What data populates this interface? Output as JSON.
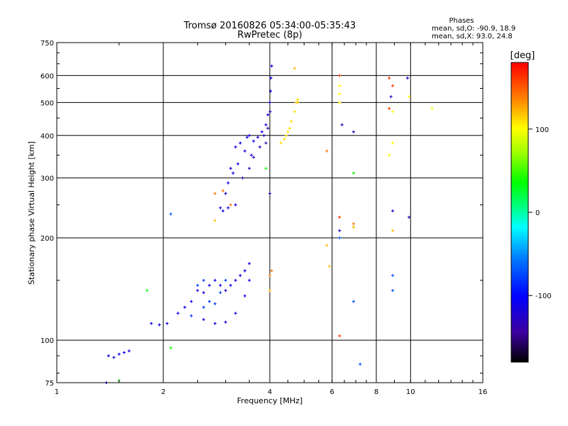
{
  "chart_data": {
    "type": "scatter",
    "title": "Tromsø 20160826 05:34:00-05:35:43",
    "subtitle": "RwPretec (8p)",
    "xlabel": "Frequency [MHz]",
    "ylabel": "Stationary phase Virtual Height [km]",
    "x_scale": "log2",
    "y_scale": "log",
    "xlim": [
      1,
      16
    ],
    "ylim": [
      75,
      750
    ],
    "x_ticks": [
      1,
      2,
      4,
      6,
      8,
      10,
      16
    ],
    "y_ticks": [
      75,
      100,
      200,
      300,
      400,
      500,
      600,
      750
    ],
    "x_gridlines": [
      2,
      4,
      6,
      8,
      10
    ],
    "y_gridlines": [
      100,
      200,
      300,
      400,
      500,
      600
    ],
    "grid": true,
    "phase_info": {
      "title": "Phases",
      "line1": "mean, sd,O: -90.9, 18.9",
      "line2": "mean, sd,X:  93.0, 24.8"
    },
    "colorbar": {
      "label": "[deg]",
      "range": [
        -180,
        180
      ],
      "ticks": [
        100,
        0,
        -100
      ]
    },
    "series": [
      {
        "color_value": -110,
        "points": [
          [
            3.8,
            410
          ],
          [
            3.9,
            430
          ],
          [
            3.95,
            460
          ],
          [
            4.0,
            500
          ],
          [
            4.02,
            540
          ],
          [
            4.03,
            590
          ],
          [
            4.05,
            640
          ],
          [
            3.7,
            395
          ],
          [
            3.6,
            385
          ],
          [
            3.5,
            400
          ],
          [
            3.45,
            395
          ],
          [
            3.3,
            380
          ],
          [
            3.2,
            370
          ],
          [
            3.25,
            330
          ],
          [
            3.4,
            360
          ],
          [
            3.55,
            350
          ],
          [
            3.1,
            320
          ],
          [
            3.15,
            310
          ],
          [
            3.0,
            270
          ],
          [
            3.05,
            290
          ],
          [
            2.9,
            245
          ],
          [
            2.95,
            240
          ],
          [
            3.05,
            245
          ],
          [
            3.2,
            250
          ]
        ]
      },
      {
        "color_value": -135,
        "points": [
          [
            3.35,
            300
          ],
          [
            3.5,
            320
          ],
          [
            3.6,
            345
          ],
          [
            3.75,
            370
          ],
          [
            3.85,
            400
          ],
          [
            3.95,
            420
          ],
          [
            4.01,
            470
          ],
          [
            3.9,
            380
          ]
        ]
      },
      {
        "color_value": 110,
        "points": [
          [
            4.3,
            380
          ],
          [
            4.4,
            390
          ],
          [
            4.5,
            410
          ],
          [
            4.6,
            440
          ],
          [
            4.7,
            470
          ],
          [
            4.75,
            500
          ],
          [
            4.8,
            510
          ],
          [
            4.55,
            420
          ],
          [
            4.45,
            400
          ]
        ]
      },
      {
        "color_value": -110,
        "points": [
          [
            1.85,
            112
          ],
          [
            1.95,
            111
          ],
          [
            2.05,
            112
          ],
          [
            2.2,
            120
          ],
          [
            2.3,
            125
          ],
          [
            2.4,
            130
          ],
          [
            2.5,
            140
          ],
          [
            2.6,
            138
          ],
          [
            2.7,
            145
          ],
          [
            2.8,
            150
          ],
          [
            2.9,
            145
          ],
          [
            3.0,
            140
          ],
          [
            3.1,
            145
          ],
          [
            3.2,
            150
          ],
          [
            3.3,
            155
          ],
          [
            3.4,
            160
          ],
          [
            3.5,
            168
          ],
          [
            2.6,
            115
          ],
          [
            2.8,
            112
          ],
          [
            3.0,
            113
          ],
          [
            3.2,
            120
          ],
          [
            3.4,
            135
          ],
          [
            3.5,
            150
          ]
        ]
      },
      {
        "color_value": -80,
        "points": [
          [
            2.4,
            118
          ],
          [
            2.6,
            125
          ],
          [
            2.7,
            130
          ],
          [
            2.8,
            128
          ],
          [
            2.9,
            138
          ],
          [
            3.0,
            150
          ],
          [
            2.5,
            145
          ],
          [
            2.6,
            150
          ]
        ]
      },
      {
        "color_value": -110,
        "points": [
          [
            1.4,
            90
          ],
          [
            1.45,
            89
          ],
          [
            1.5,
            91
          ],
          [
            1.55,
            92
          ],
          [
            1.6,
            93
          ],
          [
            1.38,
            75
          ]
        ]
      },
      {
        "color_value": 160,
        "points": [
          [
            6.3,
            600
          ],
          [
            6.3,
            230
          ],
          [
            6.3,
            103
          ],
          [
            8.7,
            590
          ],
          [
            8.9,
            560
          ],
          [
            8.7,
            480
          ]
        ]
      },
      {
        "color_value": 100,
        "points": [
          [
            6.3,
            560
          ],
          [
            6.3,
            530
          ],
          [
            6.3,
            500
          ],
          [
            8.9,
            470
          ],
          [
            9.9,
            520
          ],
          [
            11.5,
            480
          ],
          [
            8.9,
            380
          ],
          [
            8.7,
            350
          ]
        ]
      },
      {
        "color_value": -130,
        "points": [
          [
            6.4,
            430
          ],
          [
            6.9,
            410
          ],
          [
            8.8,
            520
          ],
          [
            9.8,
            590
          ],
          [
            8.9,
            240
          ],
          [
            9.9,
            230
          ],
          [
            6.3,
            210
          ],
          [
            4.0,
            270
          ]
        ]
      },
      {
        "color_value": -70,
        "points": [
          [
            6.9,
            130
          ],
          [
            7.2,
            85
          ],
          [
            8.9,
            155
          ],
          [
            8.9,
            140
          ],
          [
            2.1,
            235
          ],
          [
            6.3,
            200
          ]
        ]
      },
      {
        "color_value": 40,
        "points": [
          [
            1.8,
            140
          ],
          [
            2.1,
            95
          ],
          [
            6.9,
            310
          ],
          [
            3.9,
            320
          ],
          [
            1.5,
            76
          ]
        ]
      },
      {
        "color_value": 140,
        "points": [
          [
            2.8,
            270
          ],
          [
            2.95,
            275
          ],
          [
            4.05,
            160
          ],
          [
            6.9,
            220
          ],
          [
            6.9,
            215
          ],
          [
            5.8,
            360
          ],
          [
            3.1,
            250
          ],
          [
            4.0,
            155
          ]
        ]
      },
      {
        "color_value": 120,
        "points": [
          [
            4.7,
            630
          ],
          [
            4.8,
            500
          ],
          [
            5.8,
            190
          ],
          [
            5.9,
            165
          ],
          [
            6.9,
            215
          ],
          [
            8.9,
            210
          ],
          [
            2.8,
            225
          ],
          [
            4.0,
            140
          ]
        ]
      }
    ]
  }
}
